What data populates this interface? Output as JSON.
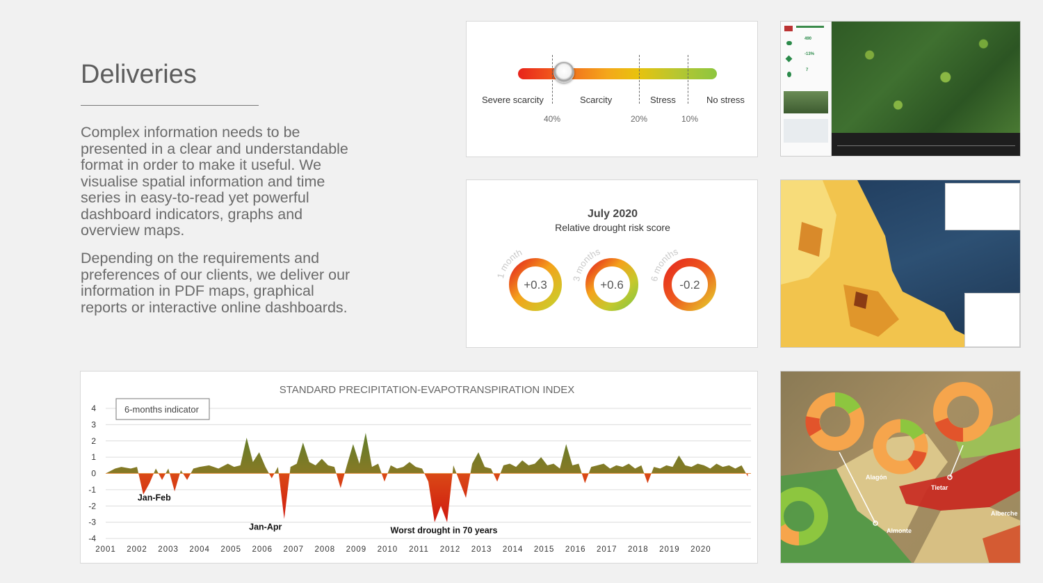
{
  "intro": {
    "heading": "Deliveries",
    "paragraph1": "Complex information needs to be presented in a clear and understandable format in order to make it useful. We visualise spatial information and time series in easy-to-read yet powerful dashboard indicators, graphs and overview maps.",
    "paragraph2": "Depending on the requirements and preferences of our clients, we deliver our information in PDF maps, graphical reports or interactive online dashboards."
  },
  "scarcity_gauge": {
    "categories": [
      "Severe scarcity",
      "Scarcity",
      "Stress",
      "No stress"
    ],
    "thresholds": [
      "40%",
      "20%",
      "10%"
    ],
    "knob_level": 0.23,
    "colors": [
      "#e8231b",
      "#f4a71b",
      "#c8c42a",
      "#8dc63f"
    ]
  },
  "drought_card": {
    "title": "July 2020",
    "subtitle": "Relative drought risk score",
    "rings": [
      {
        "period": "1 month",
        "value": "+0.3"
      },
      {
        "period": "3 months",
        "value": "+0.6"
      },
      {
        "period": "6 months",
        "value": "-0.2"
      }
    ]
  },
  "chart_data": {
    "type": "area",
    "title": "STANDARD PRECIPITATION-EVAPOTRANSPIRATION INDEX",
    "legend": "6-months indicator",
    "ylim": [
      -4,
      4
    ],
    "yticks": [
      "4",
      "3",
      "2",
      "1",
      "0",
      "-1",
      "-2",
      "-3",
      "-4"
    ],
    "xlim": [
      2001,
      2021.6
    ],
    "x_tick_labels": [
      "2001",
      "2002",
      "2003",
      "2004",
      "2005",
      "2006",
      "2007",
      "2008",
      "2009",
      "2010",
      "2011",
      "2012",
      "2013",
      "2014",
      "2015",
      "2016",
      "2017",
      "2018",
      "2019",
      "2020"
    ],
    "grid": true,
    "series": [
      {
        "x": [
          2001.0,
          2001.3,
          2001.5,
          2001.8,
          2002.0,
          2002.2,
          2002.4,
          2002.6,
          2002.8,
          2003.0,
          2003.2,
          2003.4,
          2003.6,
          2003.8,
          2004.0,
          2004.3,
          2004.6,
          2004.9,
          2005.1,
          2005.3,
          2005.5,
          2005.7,
          2005.9,
          2006.1,
          2006.3,
          2006.5,
          2006.7,
          2006.9,
          2007.1,
          2007.3,
          2007.5,
          2007.7,
          2007.9,
          2008.1,
          2008.3,
          2008.5,
          2008.7,
          2008.9,
          2009.1,
          2009.3,
          2009.5,
          2009.7,
          2009.9,
          2010.1,
          2010.3,
          2010.5,
          2010.7,
          2010.9,
          2011.1,
          2011.3,
          2011.5,
          2011.7,
          2011.9,
          2012.1,
          2012.3,
          2012.5,
          2012.7,
          2012.9,
          2013.1,
          2013.3,
          2013.5,
          2013.7,
          2013.9,
          2014.1,
          2014.3,
          2014.5,
          2014.7,
          2014.9,
          2015.1,
          2015.3,
          2015.5,
          2015.7,
          2015.9,
          2016.1,
          2016.3,
          2016.5,
          2016.7,
          2016.9,
          2017.1,
          2017.3,
          2017.5,
          2017.7,
          2017.9,
          2018.1,
          2018.3,
          2018.5,
          2018.7,
          2018.9,
          2019.1,
          2019.3,
          2019.5,
          2019.7,
          2019.9,
          2020.1,
          2020.3,
          2020.5,
          2020.7,
          2020.9,
          2021.1,
          2021.3,
          2021.5
        ],
        "values": [
          0.0,
          0.3,
          0.4,
          0.3,
          0.4,
          -1.3,
          -0.6,
          0.3,
          -0.4,
          0.3,
          -1.1,
          0.2,
          -0.4,
          0.3,
          0.4,
          0.5,
          0.3,
          0.6,
          0.4,
          0.5,
          2.2,
          0.7,
          1.3,
          0.4,
          -0.3,
          0.4,
          -2.8,
          0.4,
          0.6,
          1.9,
          0.7,
          0.5,
          0.9,
          0.5,
          0.4,
          -0.9,
          0.5,
          1.8,
          0.6,
          2.5,
          0.4,
          0.6,
          -0.5,
          0.5,
          0.3,
          0.4,
          0.7,
          0.4,
          0.3,
          -0.5,
          -3.0,
          -2.0,
          -3.0,
          0.5,
          -0.5,
          -1.5,
          0.6,
          1.3,
          0.4,
          0.3,
          -0.5,
          0.5,
          0.6,
          0.4,
          0.8,
          0.5,
          0.6,
          1.0,
          0.5,
          0.6,
          0.3,
          1.8,
          0.5,
          0.6,
          -0.6,
          0.4,
          0.5,
          0.6,
          0.3,
          0.5,
          0.4,
          0.6,
          0.3,
          0.5,
          -0.6,
          0.4,
          0.3,
          0.5,
          0.4,
          1.1,
          0.5,
          0.4,
          0.6,
          0.5,
          0.3,
          0.6,
          0.4,
          0.5,
          0.3,
          0.5,
          -0.2
        ]
      }
    ],
    "annotations": [
      {
        "x": 2002.55,
        "y": -1.5,
        "text": "Jan-Feb"
      },
      {
        "x": 2006.1,
        "y": -3.3,
        "text": "Jan-Apr"
      },
      {
        "x": 2011.8,
        "y": -3.5,
        "text": "Worst drought in 70 years"
      }
    ]
  },
  "map_labels": [
    "Alagón",
    "Tietar",
    "Alberche",
    "Almonte"
  ],
  "dashboard_screenshot": {
    "stats": [
      "490",
      "-13%",
      "7"
    ]
  }
}
